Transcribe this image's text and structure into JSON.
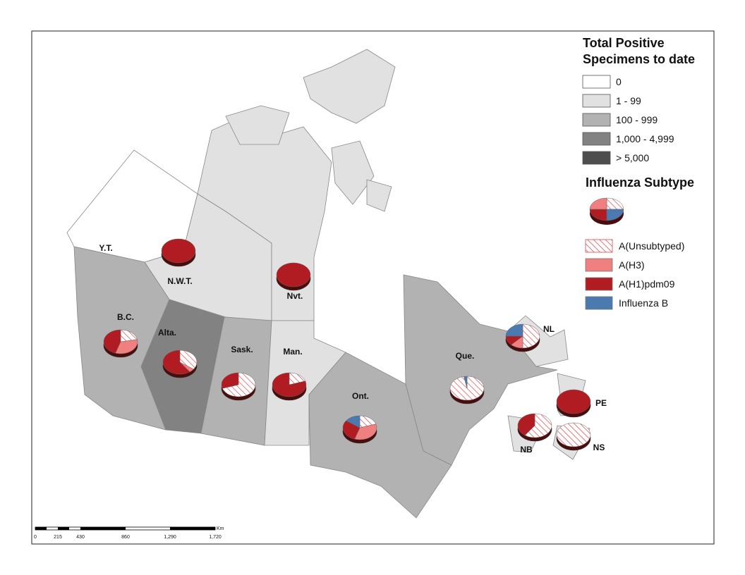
{
  "legend": {
    "title": [
      "Total Positive",
      "Specimens to date"
    ],
    "classes": [
      {
        "label": "0",
        "color": "#ffffff"
      },
      {
        "label": "1 - 99",
        "color": "#e1e1e1"
      },
      {
        "label": "100 - 999",
        "color": "#b2b2b2"
      },
      {
        "label": "1,000 - 4,999",
        "color": "#828282"
      },
      {
        "label": "> 5,000",
        "color": "#4e4e4e"
      }
    ]
  },
  "subtype_legend": {
    "title": "Influenza Subtype",
    "items": [
      {
        "label": "A(Unsubtyped)",
        "color": "#e0474c",
        "pattern": "hatch"
      },
      {
        "label": "A(H3)",
        "color": "#f08080"
      },
      {
        "label": "A(H1)pdm09",
        "color": "#b01c22"
      },
      {
        "label": "Influenza B",
        "color": "#4a7ab0"
      }
    ]
  },
  "provinces": [
    {
      "label": "Y.T.",
      "class": 0,
      "pie": null
    },
    {
      "label": "N.W.T.",
      "class": 1,
      "pie": [
        0,
        0,
        100,
        0
      ]
    },
    {
      "label": "Nvt.",
      "class": 1,
      "pie": [
        0,
        0,
        100,
        0
      ]
    },
    {
      "label": "B.C.",
      "class": 2,
      "pie": [
        22,
        33,
        45,
        0
      ]
    },
    {
      "label": "Alta.",
      "class": 3,
      "pie": [
        35,
        5,
        60,
        0
      ]
    },
    {
      "label": "Sask.",
      "class": 2,
      "pie": [
        70,
        0,
        30,
        0
      ]
    },
    {
      "label": "Man.",
      "class": 1,
      "pie": [
        20,
        0,
        80,
        0
      ]
    },
    {
      "label": "Ont.",
      "class": 2,
      "pie": [
        20,
        35,
        30,
        15
      ]
    },
    {
      "label": "Que.",
      "class": 2,
      "pie": [
        97,
        0,
        0,
        3
      ]
    },
    {
      "label": "NL",
      "class": 1,
      "pie": [
        50,
        12,
        13,
        25
      ]
    },
    {
      "label": "PE",
      "class": 1,
      "pie": [
        0,
        0,
        100,
        0
      ]
    },
    {
      "label": "NB",
      "class": 1,
      "pie": [
        60,
        0,
        40,
        0
      ]
    },
    {
      "label": "NS",
      "class": 1,
      "pie": [
        100,
        0,
        0,
        0
      ]
    }
  ],
  "scale_bar": {
    "labels": [
      "0",
      "215",
      "430",
      "860",
      "1,290",
      "1,720"
    ],
    "unit": "Km"
  }
}
